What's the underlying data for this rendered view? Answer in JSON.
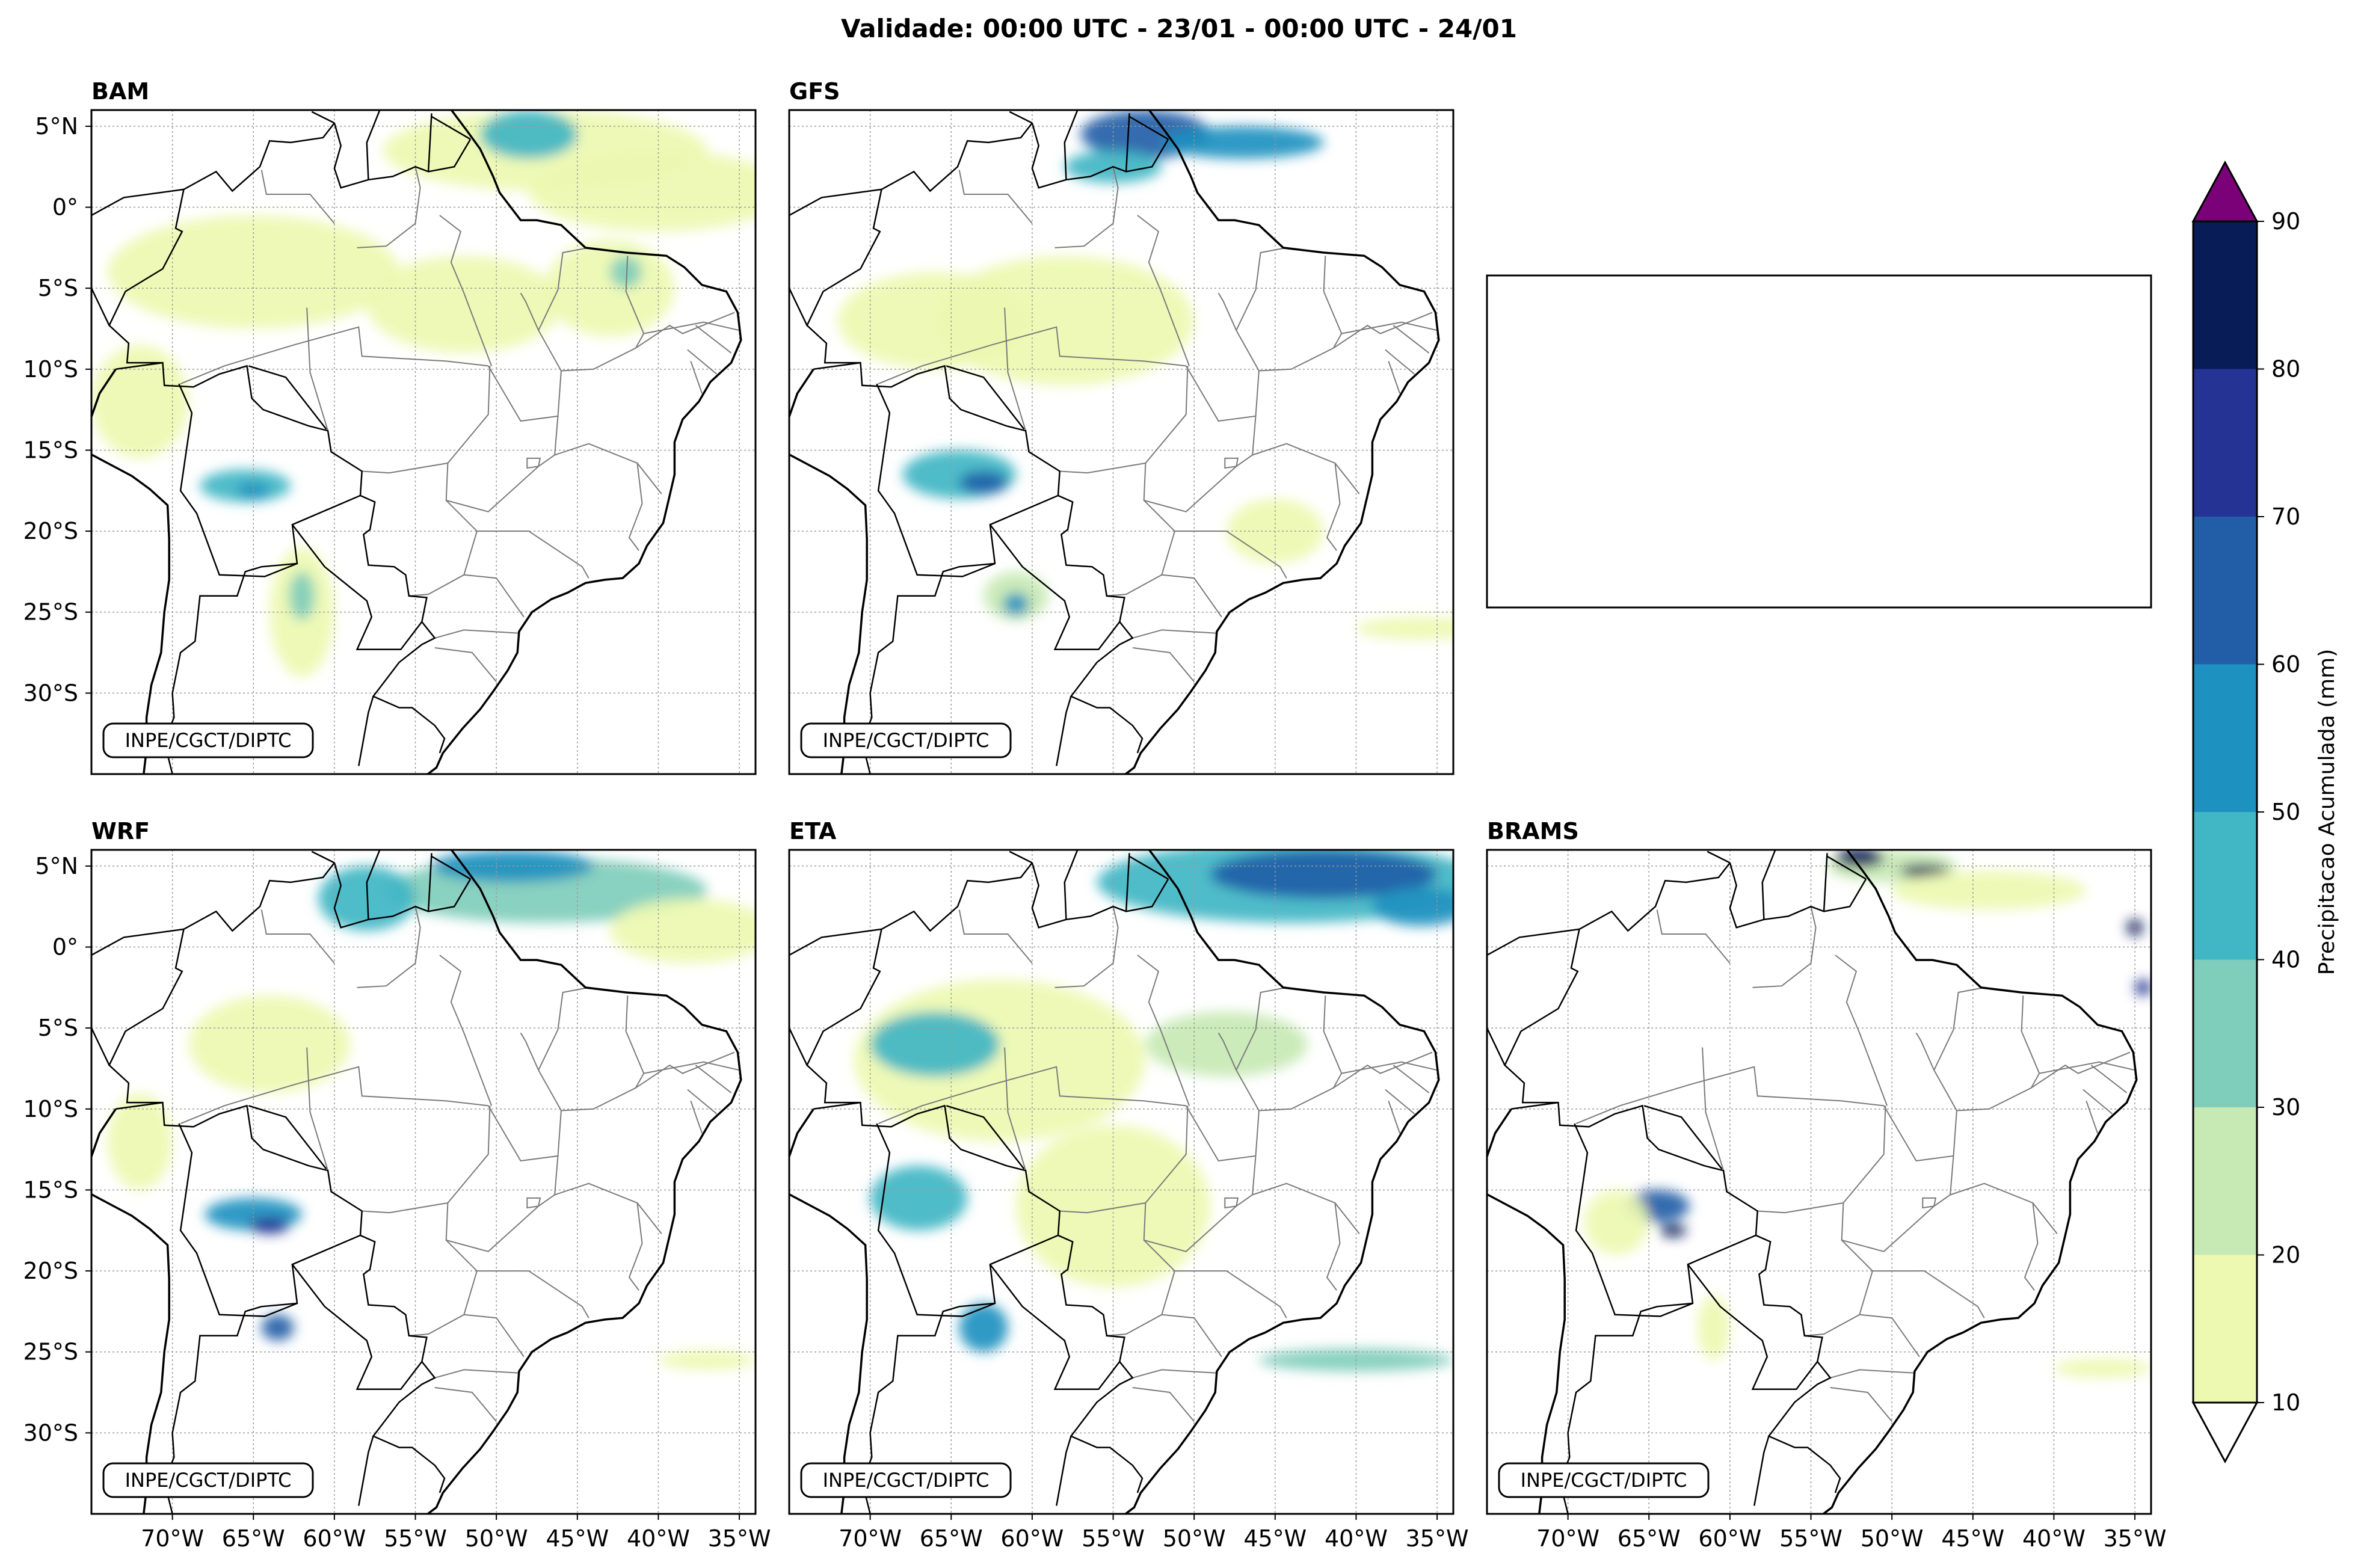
{
  "figure": {
    "title": "Validade: 00:00 UTC - 23/01 - 00:00 UTC - 24/01"
  },
  "panels": [
    {
      "id": "bam",
      "label": "BAM",
      "credit": "INPE/CGCT/DIPTC"
    },
    {
      "id": "gfs",
      "label": "GFS",
      "credit": "INPE/CGCT/DIPTC"
    },
    {
      "id": "empty",
      "label": "",
      "credit": ""
    },
    {
      "id": "wrf",
      "label": "WRF",
      "credit": "INPE/CGCT/DIPTC"
    },
    {
      "id": "eta",
      "label": "ETA",
      "credit": "INPE/CGCT/DIPTC"
    },
    {
      "id": "brams",
      "label": "BRAMS",
      "credit": "INPE/CGCT/DIPTC"
    }
  ],
  "chart_data": {
    "type": "heatmap",
    "title": "Validade: 00:00 UTC - 23/01 - 00:00 UTC - 24/01",
    "variable": "Precipitacao Acumulada (mm)",
    "lon_range": [
      -75,
      -34
    ],
    "lat_range": [
      -35,
      6
    ],
    "lon_ticks": [
      -70,
      -65,
      -60,
      -55,
      -50,
      -45,
      -40,
      -35
    ],
    "lon_tick_labels": [
      "70°W",
      "65°W",
      "60°W",
      "55°W",
      "50°W",
      "45°W",
      "40°W",
      "35°W"
    ],
    "lat_ticks": [
      5,
      0,
      -5,
      -10,
      -15,
      -20,
      -25,
      -30
    ],
    "lat_tick_labels": [
      "5°N",
      "0°",
      "5°S",
      "10°S",
      "15°S",
      "20°S",
      "25°S",
      "30°S"
    ],
    "colorbar": {
      "label": "Precipitacao Acumulada (mm)",
      "levels": [
        10,
        20,
        30,
        40,
        50,
        60,
        70,
        80,
        90
      ],
      "tick_labels": [
        "10",
        "20",
        "30",
        "40",
        "50",
        "60",
        "70",
        "80",
        "90"
      ],
      "colors": [
        "#edf8b1",
        "#c7e9b4",
        "#7fcdbb",
        "#41b6c4",
        "#1d91c0",
        "#225ea8",
        "#253494",
        "#081d58"
      ],
      "under_color": "#ffffff",
      "over_color": "#7a0177"
    },
    "models": [
      "BAM",
      "GFS",
      "WRF",
      "ETA",
      "BRAMS"
    ],
    "rain_regions": {
      "BAM": [
        {
          "lon": -47,
          "lat": 3.5,
          "rlon": 10,
          "rlat": 2.5,
          "level": 0
        },
        {
          "lon": -48,
          "lat": 4.5,
          "rlon": 3,
          "rlat": 1.5,
          "level": 3
        },
        {
          "lon": -40,
          "lat": 1,
          "rlon": 8,
          "rlat": 2.5,
          "level": 0
        },
        {
          "lon": -65,
          "lat": -4,
          "rlon": 9,
          "rlat": 3.5,
          "level": 0
        },
        {
          "lon": -52,
          "lat": -6,
          "rlon": 6,
          "rlat": 3,
          "level": 0
        },
        {
          "lon": -43,
          "lat": -5,
          "rlon": 4,
          "rlat": 3,
          "level": 0
        },
        {
          "lon": -42,
          "lat": -4,
          "rlon": 1,
          "rlat": 1,
          "level": 2
        },
        {
          "lon": -72,
          "lat": -12,
          "rlon": 3,
          "rlat": 3.5,
          "level": 0
        },
        {
          "lon": -65.5,
          "lat": -17.2,
          "rlon": 2.8,
          "rlat": 1,
          "level": 3
        },
        {
          "lon": -65,
          "lat": -17.5,
          "rlon": 1,
          "rlat": 0.5,
          "level": 4
        },
        {
          "lon": -62,
          "lat": -25,
          "rlon": 2,
          "rlat": 4,
          "level": 0
        },
        {
          "lon": -62,
          "lat": -24,
          "rlon": 0.8,
          "rlat": 1.5,
          "level": 2
        }
      ],
      "GFS": [
        {
          "lon": -53,
          "lat": 4.5,
          "rlon": 4,
          "rlat": 1.5,
          "level": 5
        },
        {
          "lon": -47,
          "lat": 4,
          "rlon": 5,
          "rlat": 1,
          "level": 4
        },
        {
          "lon": -55,
          "lat": 2.5,
          "rlon": 3,
          "rlat": 1,
          "level": 3
        },
        {
          "lon": -58,
          "lat": -7,
          "rlon": 8,
          "rlat": 4,
          "level": 0
        },
        {
          "lon": -66,
          "lat": -7,
          "rlon": 6,
          "rlat": 3,
          "level": 0
        },
        {
          "lon": -64.5,
          "lat": -16.5,
          "rlon": 3.5,
          "rlat": 1.5,
          "level": 3
        },
        {
          "lon": -63,
          "lat": -17,
          "rlon": 1.5,
          "rlat": 0.7,
          "level": 5
        },
        {
          "lon": -61,
          "lat": -24,
          "rlon": 2,
          "rlat": 1.5,
          "level": 1
        },
        {
          "lon": -61,
          "lat": -24.5,
          "rlon": 0.8,
          "rlat": 0.7,
          "level": 4
        },
        {
          "lon": -45,
          "lat": -20,
          "rlon": 3,
          "rlat": 2,
          "level": 0
        },
        {
          "lon": -36,
          "lat": -26,
          "rlon": 4,
          "rlat": 0.7,
          "level": 0
        }
      ],
      "WRF": [
        {
          "lon": -47,
          "lat": 3.5,
          "rlon": 10,
          "rlat": 2,
          "level": 2
        },
        {
          "lon": -49,
          "lat": 5,
          "rlon": 5,
          "rlat": 1,
          "level": 4
        },
        {
          "lon": -38,
          "lat": 1,
          "rlon": 5,
          "rlat": 2,
          "level": 0
        },
        {
          "lon": -58,
          "lat": 3,
          "rlon": 3,
          "rlat": 2,
          "level": 3
        },
        {
          "lon": -64,
          "lat": -6,
          "rlon": 5,
          "rlat": 3,
          "level": 0
        },
        {
          "lon": -65,
          "lat": -16.5,
          "rlon": 3,
          "rlat": 1,
          "level": 4
        },
        {
          "lon": -64,
          "lat": -17.2,
          "rlon": 1.2,
          "rlat": 0.5,
          "level": 6
        },
        {
          "lon": -63.5,
          "lat": -23.5,
          "rlon": 1,
          "rlat": 0.8,
          "level": 5
        },
        {
          "lon": -72,
          "lat": -12,
          "rlon": 2,
          "rlat": 3,
          "level": 0
        },
        {
          "lon": -37,
          "lat": -25.5,
          "rlon": 3,
          "rlat": 0.6,
          "level": 0
        }
      ],
      "ETA": [
        {
          "lon": -44,
          "lat": 4,
          "rlon": 12,
          "rlat": 2.5,
          "level": 3
        },
        {
          "lon": -42,
          "lat": 4.5,
          "rlon": 7,
          "rlat": 1.5,
          "level": 5
        },
        {
          "lon": -36,
          "lat": 2.5,
          "rlon": 3,
          "rlat": 1.2,
          "level": 4
        },
        {
          "lon": -62,
          "lat": -7,
          "rlon": 9,
          "rlat": 5,
          "level": 0
        },
        {
          "lon": -66,
          "lat": -6,
          "rlon": 4,
          "rlat": 2,
          "level": 3
        },
        {
          "lon": -55,
          "lat": -16,
          "rlon": 6,
          "rlat": 5,
          "level": 0
        },
        {
          "lon": -48,
          "lat": -6,
          "rlon": 5,
          "rlat": 2,
          "level": 1
        },
        {
          "lon": -67,
          "lat": -15.5,
          "rlon": 3,
          "rlat": 2,
          "level": 3
        },
        {
          "lon": -63,
          "lat": -23.5,
          "rlon": 1.5,
          "rlat": 1.5,
          "level": 4
        },
        {
          "lon": -40,
          "lat": -25.5,
          "rlon": 6,
          "rlat": 0.7,
          "level": 2
        }
      ],
      "BRAMS": [
        {
          "lon": -50,
          "lat": 5,
          "rlon": 4,
          "rlat": 1,
          "level": 1
        },
        {
          "lon": -52,
          "lat": 5.5,
          "rlon": 1.5,
          "rlat": 0.6,
          "level": 7
        },
        {
          "lon": -48,
          "lat": 4.7,
          "rlon": 1.5,
          "rlat": 0.4,
          "level": 7
        },
        {
          "lon": -44,
          "lat": 3.5,
          "rlon": 6,
          "rlat": 1.2,
          "level": 0
        },
        {
          "lon": -35,
          "lat": 1.2,
          "rlon": 0.5,
          "rlat": 0.5,
          "level": 7
        },
        {
          "lon": -34.5,
          "lat": -2.5,
          "rlon": 0.5,
          "rlat": 0.5,
          "level": 6
        },
        {
          "lon": -64.5,
          "lat": -16,
          "rlon": 2,
          "rlat": 1,
          "level": 5
        },
        {
          "lon": -63.5,
          "lat": -17.5,
          "rlon": 0.8,
          "rlat": 0.4,
          "level": 7
        },
        {
          "lon": -67,
          "lat": -17,
          "rlon": 2,
          "rlat": 2,
          "level": 0
        },
        {
          "lon": -61,
          "lat": -23.5,
          "rlon": 1,
          "rlat": 2,
          "level": 0
        },
        {
          "lon": -37,
          "lat": -26,
          "rlon": 3,
          "rlat": 0.6,
          "level": 0
        }
      ]
    }
  }
}
